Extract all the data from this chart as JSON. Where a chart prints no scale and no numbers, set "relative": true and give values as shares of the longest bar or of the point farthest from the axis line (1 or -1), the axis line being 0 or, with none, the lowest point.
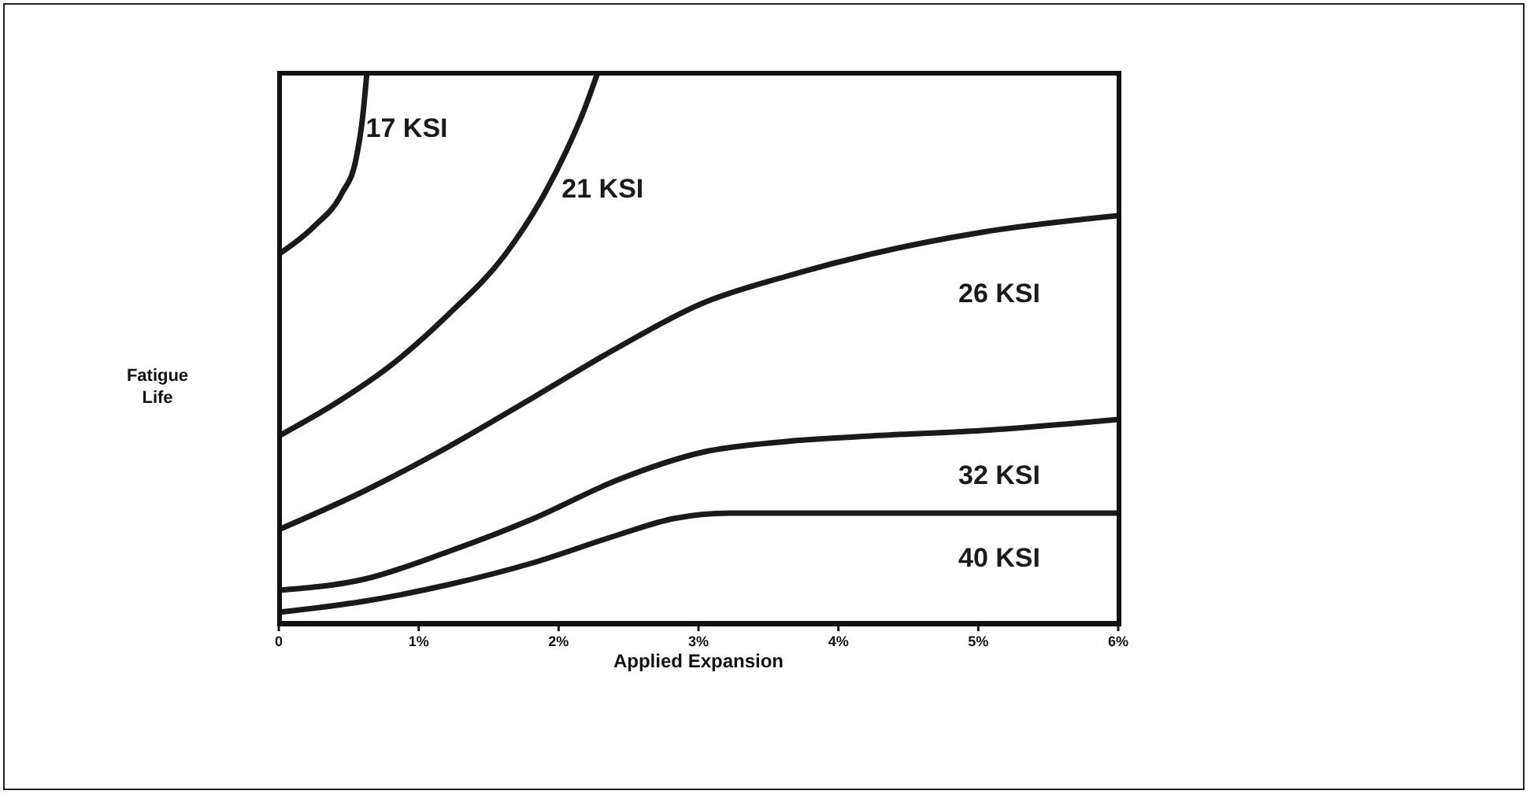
{
  "chart_data": {
    "type": "line",
    "relative": true,
    "xlabel": "Applied Expansion",
    "ylabel": "Fatigue Life",
    "xlim": [
      0,
      6
    ],
    "xticks": [
      {
        "value": 0,
        "label": "0"
      },
      {
        "value": 1,
        "label": "1%"
      },
      {
        "value": 2,
        "label": "2%"
      },
      {
        "value": 3,
        "label": "3%"
      },
      {
        "value": 4,
        "label": "4%"
      },
      {
        "value": 5,
        "label": "5%"
      },
      {
        "value": 6,
        "label": "6%"
      }
    ],
    "grid": false,
    "legend": false,
    "marker": "none",
    "line_style": "solid",
    "series": [
      {
        "name": "17 KSI",
        "color": "#1a1a1a",
        "x": [
          0,
          0.25,
          0.45,
          0.55,
          0.6,
          0.63
        ],
        "values": [
          0.67,
          0.72,
          0.78,
          0.84,
          0.92,
          1
        ]
      },
      {
        "name": "21 KSI",
        "color": "#1a1a1a",
        "x": [
          0,
          0.41,
          0.81,
          1.21,
          1.62,
          1.9,
          2.06,
          2.18,
          2.28
        ],
        "values": [
          0.34,
          0.4,
          0.47,
          0.56,
          0.67,
          0.78,
          0.86,
          0.93,
          1
        ]
      },
      {
        "name": "26 KSI",
        "color": "#1a1a1a",
        "x": [
          0,
          0.61,
          1.21,
          1.82,
          2.42,
          3.02,
          3.63,
          4.23,
          5.03,
          6
        ],
        "values": [
          0.17,
          0.24,
          0.32,
          0.41,
          0.5,
          0.58,
          0.63,
          0.67,
          0.71,
          0.74
        ]
      },
      {
        "name": "32 KSI",
        "color": "#1a1a1a",
        "x": [
          0,
          0.61,
          1.21,
          1.82,
          2.42,
          3.02,
          3.63,
          4.23,
          5.03,
          6
        ],
        "values": [
          0.06,
          0.08,
          0.13,
          0.19,
          0.26,
          0.31,
          0.33,
          0.34,
          0.35,
          0.37
        ]
      },
      {
        "name": "40 KSI",
        "color": "#1a1a1a",
        "x": [
          0,
          0.61,
          1.21,
          1.82,
          2.42,
          2.82,
          3.22,
          3.83,
          6
        ],
        "values": [
          0.02,
          0.04,
          0.07,
          0.11,
          0.16,
          0.19,
          0.2,
          0.2,
          0.2
        ]
      }
    ]
  }
}
